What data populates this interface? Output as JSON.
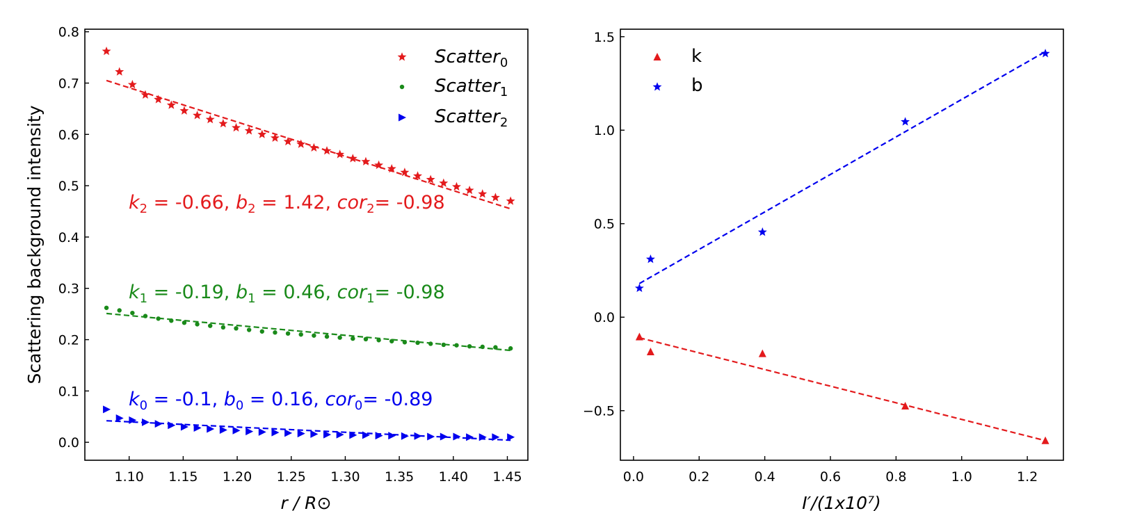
{
  "chart_data": [
    {
      "type": "scatter",
      "panel": "left",
      "xlabel": "r / R⊙",
      "ylabel": "Scattering background intensity",
      "xlim": [
        1.059,
        1.469
      ],
      "ylim": [
        -0.035,
        0.805
      ],
      "xticks": [
        1.1,
        1.15,
        1.2,
        1.25,
        1.3,
        1.35,
        1.4,
        1.45
      ],
      "xtick_labels": [
        "1.10",
        "1.15",
        "1.20",
        "1.25",
        "1.30",
        "1.35",
        "1.40",
        "1.45"
      ],
      "yticks": [
        0.0,
        0.1,
        0.2,
        0.3,
        0.4,
        0.5,
        0.6,
        0.7,
        0.8
      ],
      "ytick_labels": [
        "0.0",
        "0.1",
        "0.2",
        "0.3",
        "0.4",
        "0.5",
        "0.6",
        "0.7",
        "0.8"
      ],
      "legend_position": "top-right",
      "x": [
        1.079,
        1.091,
        1.103,
        1.115,
        1.127,
        1.139,
        1.151,
        1.163,
        1.175,
        1.187,
        1.199,
        1.211,
        1.223,
        1.235,
        1.247,
        1.259,
        1.271,
        1.283,
        1.295,
        1.307,
        1.319,
        1.331,
        1.343,
        1.355,
        1.367,
        1.379,
        1.391,
        1.403,
        1.415,
        1.427,
        1.439,
        1.453
      ],
      "series": [
        {
          "name": "Scatter",
          "subscript": "0",
          "color": "#e31a1c",
          "marker": "star",
          "values": [
            0.762,
            0.722,
            0.697,
            0.677,
            0.668,
            0.657,
            0.646,
            0.637,
            0.629,
            0.621,
            0.613,
            0.607,
            0.6,
            0.593,
            0.586,
            0.581,
            0.574,
            0.568,
            0.561,
            0.553,
            0.547,
            0.54,
            0.533,
            0.526,
            0.519,
            0.512,
            0.505,
            0.498,
            0.491,
            0.484,
            0.477,
            0.47
          ],
          "fit": {
            "x": [
              1.079,
              1.453
            ],
            "y": [
              0.705,
              0.455
            ]
          },
          "annotation": {
            "k": "-0.66",
            "b": "1.42",
            "cor": "-0.98",
            "sub": "2"
          }
        },
        {
          "name": "Scatter",
          "subscript": "1",
          "color": "#1a8a1a",
          "marker": "dot",
          "values": [
            0.262,
            0.257,
            0.252,
            0.246,
            0.241,
            0.237,
            0.233,
            0.23,
            0.227,
            0.224,
            0.222,
            0.219,
            0.216,
            0.214,
            0.212,
            0.21,
            0.208,
            0.206,
            0.204,
            0.202,
            0.201,
            0.199,
            0.197,
            0.195,
            0.194,
            0.192,
            0.19,
            0.189,
            0.187,
            0.186,
            0.185,
            0.183
          ],
          "fit": {
            "x": [
              1.079,
              1.453
            ],
            "y": [
              0.251,
              0.179
            ]
          },
          "annotation": {
            "k": "-0.19",
            "b": "0.46",
            "cor": "-0.98",
            "sub": "1"
          }
        },
        {
          "name": "Scatter",
          "subscript": "2",
          "color": "#0000ee",
          "marker": "triangle-right",
          "values": [
            0.064,
            0.047,
            0.043,
            0.039,
            0.036,
            0.033,
            0.03,
            0.028,
            0.026,
            0.024,
            0.023,
            0.021,
            0.02,
            0.019,
            0.018,
            0.017,
            0.016,
            0.015,
            0.015,
            0.014,
            0.014,
            0.013,
            0.013,
            0.012,
            0.012,
            0.011,
            0.011,
            0.011,
            0.01,
            0.01,
            0.01,
            0.01
          ],
          "fit": {
            "x": [
              1.079,
              1.453
            ],
            "y": [
              0.042,
              0.004
            ]
          },
          "annotation": {
            "k": "-0.1",
            "b": "0.16",
            "cor": "-0.89",
            "sub": "0"
          }
        }
      ]
    },
    {
      "type": "scatter",
      "panel": "right",
      "xlabel": "I′/(1x10⁷)",
      "ylabel": "",
      "xlim": [
        -0.04,
        1.31
      ],
      "ylim": [
        -0.765,
        1.54
      ],
      "xticks": [
        0.0,
        0.2,
        0.4,
        0.6,
        0.8,
        1.0,
        1.2
      ],
      "xtick_labels": [
        "0.0",
        "0.2",
        "0.4",
        "0.6",
        "0.8",
        "1.0",
        "1.2"
      ],
      "yticks": [
        -0.5,
        0.0,
        0.5,
        1.0,
        1.5
      ],
      "ytick_labels": [
        "−0.5",
        "0.0",
        "0.5",
        "1.0",
        "1.5"
      ],
      "legend_position": "top-left",
      "series": [
        {
          "name": "k",
          "color": "#e31a1c",
          "marker": "triangle-up",
          "x": [
            0.018,
            0.052,
            0.393,
            0.828,
            1.255
          ],
          "y": [
            -0.105,
            -0.185,
            -0.195,
            -0.475,
            -0.66
          ],
          "fit": {
            "x": [
              0.018,
              1.255
            ],
            "y": [
              -0.11,
              -0.66
            ]
          }
        },
        {
          "name": "b",
          "color": "#0000ee",
          "marker": "star",
          "x": [
            0.018,
            0.052,
            0.393,
            0.828,
            1.255
          ],
          "y": [
            0.155,
            0.31,
            0.455,
            1.045,
            1.41
          ],
          "fit": {
            "x": [
              0.018,
              1.255
            ],
            "y": [
              0.18,
              1.42
            ]
          }
        }
      ]
    }
  ]
}
